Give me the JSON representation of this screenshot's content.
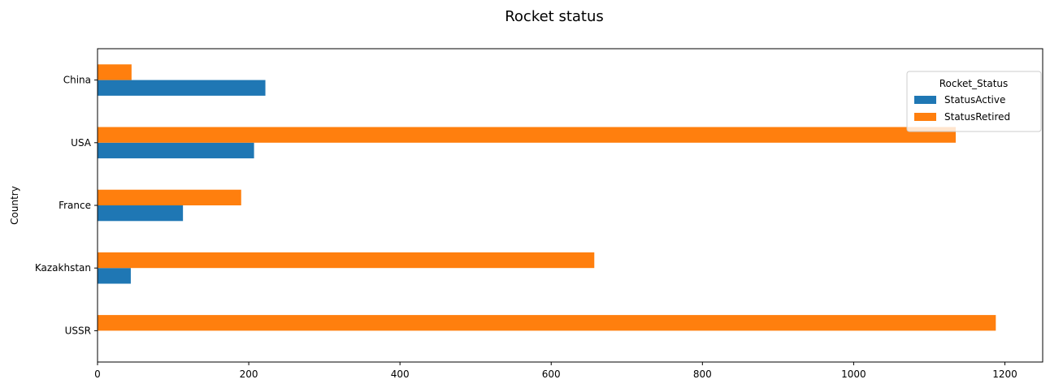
{
  "chart_data": {
    "type": "bar",
    "orientation": "horizontal",
    "title": "Rocket status",
    "xlabel": "",
    "ylabel": "Country",
    "categories": [
      "USSR",
      "Kazakhstan",
      "France",
      "USA",
      "China"
    ],
    "series": [
      {
        "name": "StatusActive",
        "color": "#1f77b4",
        "values": [
          0,
          44,
          113,
          207,
          222
        ]
      },
      {
        "name": "StatusRetired",
        "color": "#ff7f0e",
        "values": [
          1188,
          657,
          190,
          1135,
          45
        ]
      }
    ],
    "xlim": [
      0,
      1250
    ],
    "xticks": [
      0,
      200,
      400,
      600,
      800,
      1000,
      1200
    ],
    "grid": false,
    "legend": {
      "title": "Rocket_Status",
      "placement": "top-right"
    }
  }
}
